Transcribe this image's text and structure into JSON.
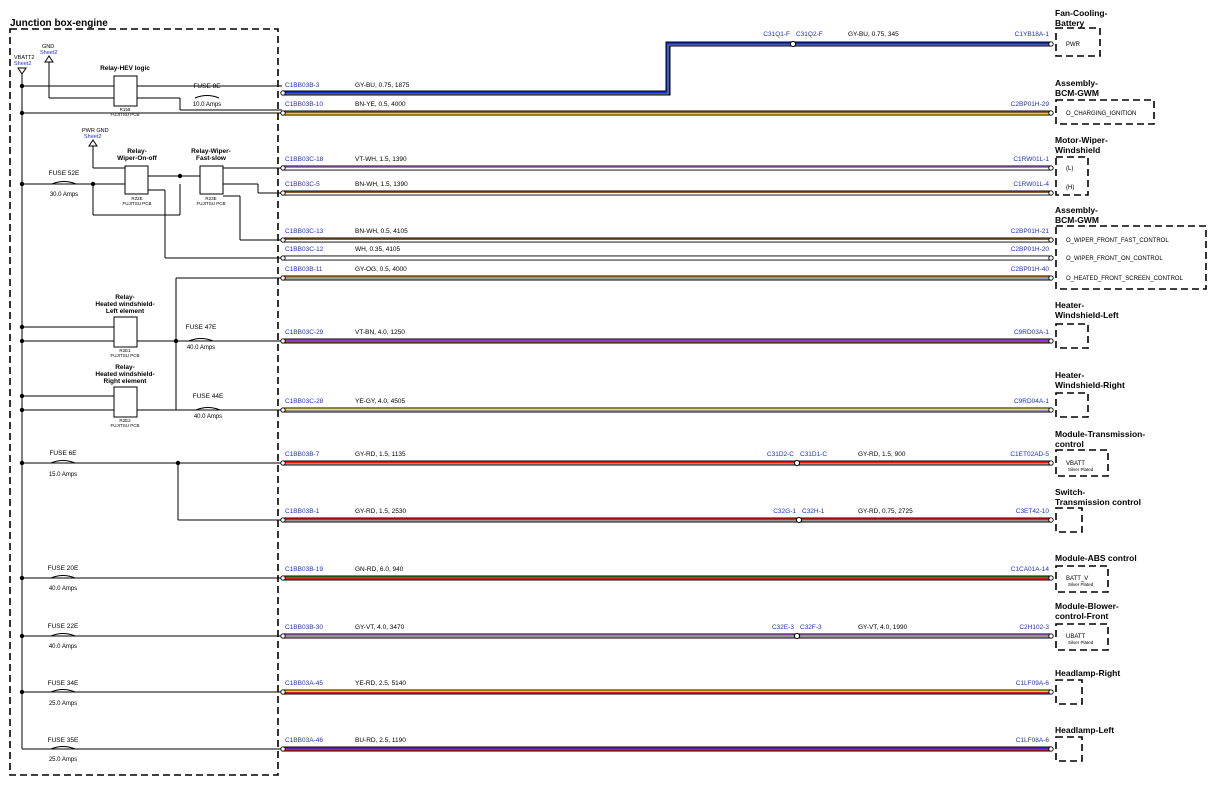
{
  "junction_box": {
    "title": "Junction box-engine",
    "vbatt": "VBATT2",
    "vbatt_sheet": "Sheet2",
    "gnd": "GND",
    "gnd_sheet": "Sheet2",
    "pwr_gnd": "PWR GND",
    "pwr_gnd_sheet": "Sheet2"
  },
  "relays": [
    {
      "title": [
        "Relay-HEV logic"
      ],
      "id": "R158",
      "mfr": "FUJITSU PCB"
    },
    {
      "title": [
        "Relay-",
        "Wiper-On-off"
      ],
      "id": "R22E",
      "mfr": "FUJITSU PCB"
    },
    {
      "title": [
        "Relay-Wiper-",
        "Fast-slow"
      ],
      "id": "R23E",
      "mfr": "FUJITSU PCB"
    },
    {
      "title": [
        "Relay-",
        "Heated windshield-",
        "Left element"
      ],
      "id": "R2E1",
      "mfr": "FUJITSU PCB"
    },
    {
      "title": [
        "Relay-",
        "Heated windshield-",
        "Right element"
      ],
      "id": "R2E2",
      "mfr": "FUJITSU PCB"
    }
  ],
  "fuses": [
    {
      "name": "FUSE 8E",
      "rating": "10.0 Amps"
    },
    {
      "name": "FUSE 52E",
      "rating": "30.0 Amps"
    },
    {
      "name": "FUSE 47E",
      "rating": "40.0 Amps"
    },
    {
      "name": "FUSE 44E",
      "rating": "40.0 Amps"
    },
    {
      "name": "FUSE 6E",
      "rating": "15.0 Amps"
    },
    {
      "name": "FUSE 20E",
      "rating": "40.0 Amps"
    },
    {
      "name": "FUSE 22E",
      "rating": "40.0 Amps"
    },
    {
      "name": "FUSE 34E",
      "rating": "25.0 Amps"
    },
    {
      "name": "FUSE 35E",
      "rating": "25.0 Amps"
    }
  ],
  "wires": [
    {
      "start": "C1BB03B-3",
      "spec": "GY-BU, 0.75, 1875",
      "colors": [
        "#1030d0",
        "#9a9a9a"
      ],
      "splice_left": "C31Q1-F",
      "splice_right": "C31Q2-F",
      "spec2": "GY-BU, 0.75, 345",
      "end": "C1YB18A-1"
    },
    {
      "start": "C1BB03B-10",
      "spec": "BN-YE, 0.5, 4000",
      "colors": [
        "#8b5a2b",
        "#f2d000"
      ],
      "end": "C2BP01H-29"
    },
    {
      "start": "C1BB03C-18",
      "spec": "VT-WH, 1.5, 1390",
      "colors": [
        "#b070e0",
        "#ffffff"
      ],
      "end": "C1RW01L-1"
    },
    {
      "start": "C1BB03C-5",
      "spec": "BN-WH, 1.5, 1390",
      "colors": [
        "#8b5a2b",
        "#ffffff"
      ],
      "end": "C1RW01L-4"
    },
    {
      "start": "C1BB03C-13",
      "spec": "BN-WH, 0.5, 4105",
      "colors": [
        "#8b5a2b",
        "#ffffff"
      ],
      "end": "C2BP01H-21"
    },
    {
      "start": "C1BB03C-12",
      "spec": "WH, 0.35, 4105",
      "colors": [
        "#ffffff"
      ],
      "end": "C2BP01H-20"
    },
    {
      "start": "C1BB03B-11",
      "spec": "GY-OG, 0.5, 4000",
      "colors": [
        "#d08a3a",
        "#a0a0a0"
      ],
      "end": "C2BP01H-40"
    },
    {
      "start": "C1BB03C-29",
      "spec": "VT-BN, 4.0, 1250",
      "colors": [
        "#9b3cc8",
        "#8b5a2b"
      ],
      "end": "C9RD03A-1"
    },
    {
      "start": "C1BB03C-28",
      "spec": "YE-GY, 4.0, 4505",
      "colors": [
        "#e6e040",
        "#9a9a9a"
      ],
      "end": "C9RD04A-1"
    },
    {
      "start": "C1BB03B-7",
      "spec": "GY-RD, 1.5, 1135",
      "colors": [
        "#ff1010",
        "#9a9a9a"
      ],
      "splice_left": "C31D2-C",
      "splice_right": "C31D1-C",
      "spec2": "GY-RD, 1.5, 900",
      "end": "C1ET02AD-5"
    },
    {
      "start": "C1BB03B-1",
      "spec": "GY-RD, 1.5, 2530",
      "colors": [
        "#ff1010",
        "#9a9a9a"
      ],
      "splice_left": "C32G-1",
      "splice_right": "C32H-1",
      "spec2": "GY-RD, 0.75, 2725",
      "end": "C3ET42-10"
    },
    {
      "start": "C1BB03B-19",
      "spec": "GN-RD, 6.0, 940",
      "colors": [
        "#1e8c1e",
        "#d42020"
      ],
      "end": "C1CA01A-14"
    },
    {
      "start": "C1BB03B-30",
      "spec": "GY-VT, 4.0, 3470",
      "colors": [
        "#b070e0",
        "#9a9a9a"
      ],
      "splice_left": "C32E-3",
      "splice_right": "C32F-3",
      "spec2": "GY-VT, 4.0, 1990",
      "end": "C2H102-3"
    },
    {
      "start": "C1BB03A-45",
      "spec": "YE-RD, 2.5, 5140",
      "colors": [
        "#f2c800",
        "#d42020"
      ],
      "end": "C1LF09A-6"
    },
    {
      "start": "C1BB03A-46",
      "spec": "BU-RD, 2.5, 1190",
      "colors": [
        "#6a1aa8",
        "#d42020"
      ],
      "end": "C1LF08A-6"
    }
  ],
  "components": [
    {
      "title": [
        "Fan-Cooling-",
        "Battery"
      ],
      "pins": [
        "PWR"
      ]
    },
    {
      "title": [
        "Assembly-",
        "BCM-GWM"
      ],
      "pins": [
        "O_CHARGING_IGNITION"
      ]
    },
    {
      "title": [
        "Motor-Wiper-",
        "Windshield"
      ],
      "pins": [
        "(L)",
        "(H)"
      ]
    },
    {
      "title": [
        "Assembly-",
        "BCM-GWM"
      ],
      "pins": [
        "O_WIPER_FRONT_FAST_CONTROL",
        "O_WIPER_FRONT_ON_CONTROL",
        "O_HEATED_FRONT_SCREEN_CONTROL"
      ]
    },
    {
      "title": [
        "Heater-",
        "Windshield-Left"
      ],
      "pins": []
    },
    {
      "title": [
        "Heater-",
        "Windshield-Right"
      ],
      "pins": []
    },
    {
      "title": [
        "Module-Transmission-",
        "control"
      ],
      "pins": [
        "VBATT"
      ],
      "sub": "Silver Plated"
    },
    {
      "title": [
        "Switch-",
        "Transmission control"
      ],
      "pins": []
    },
    {
      "title": [
        "Module-ABS control"
      ],
      "pins": [
        "BATT_V"
      ],
      "sub": "Silver Plated"
    },
    {
      "title": [
        "Module-Blower-",
        "control-Front"
      ],
      "pins": [
        "UBATT"
      ],
      "sub": "Silver Plated"
    },
    {
      "title": [
        "Headlamp-Right"
      ],
      "pins": []
    },
    {
      "title": [
        "Headlamp-Left"
      ],
      "pins": []
    }
  ]
}
